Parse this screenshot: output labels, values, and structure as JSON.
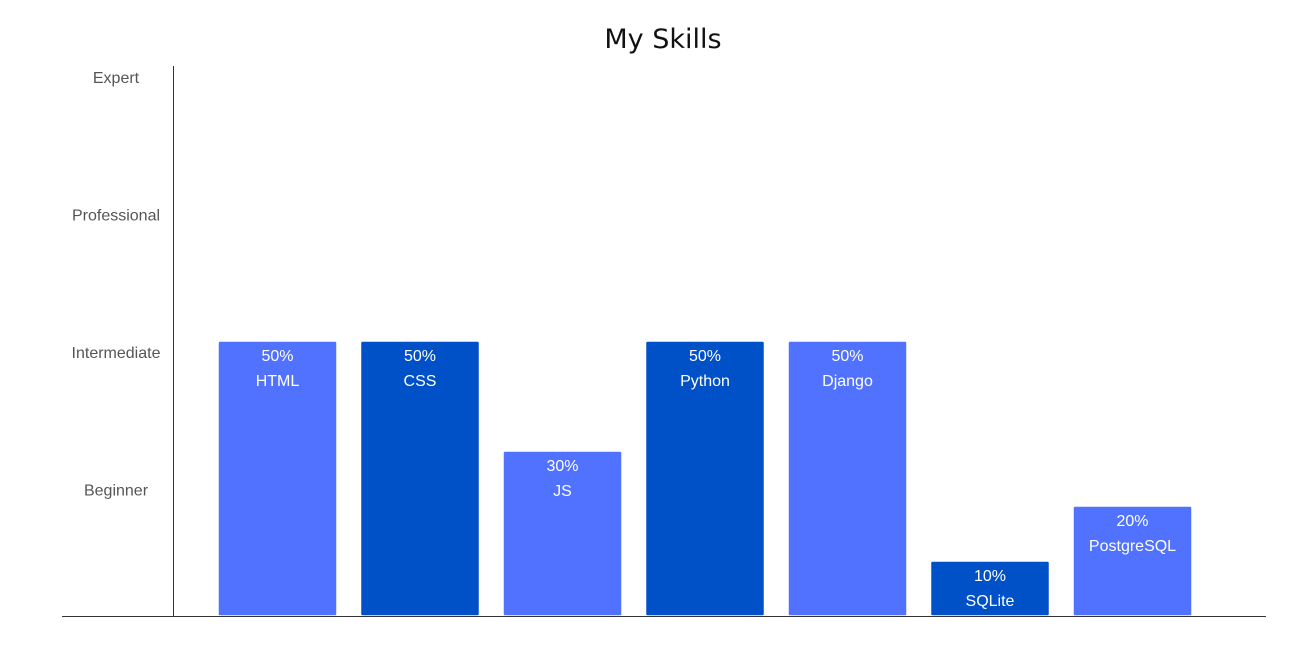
{
  "chart_data": {
    "type": "bar",
    "title": "My Skills",
    "xlabel": "",
    "ylabel": "",
    "categories": [
      "HTML",
      "CSS",
      "JS",
      "Python",
      "Django",
      "SQLite",
      "PostgreSQL"
    ],
    "values": [
      50,
      50,
      30,
      50,
      50,
      10,
      20
    ],
    "value_labels": [
      "50%",
      "50%",
      "30%",
      "50%",
      "50%",
      "10%",
      "20%"
    ],
    "ylim": [
      0,
      100
    ],
    "y_levels": [
      {
        "label": "Beginner",
        "value": 25
      },
      {
        "label": "Intermediate",
        "value": 50
      },
      {
        "label": "Professional",
        "value": 75
      },
      {
        "label": "Expert",
        "value": 100
      }
    ],
    "bar_colors": [
      "#5072ff",
      "#0050c8",
      "#5072ff",
      "#0050c8",
      "#5072ff",
      "#0050c8",
      "#5072ff"
    ],
    "grid": false,
    "legend": "none"
  }
}
